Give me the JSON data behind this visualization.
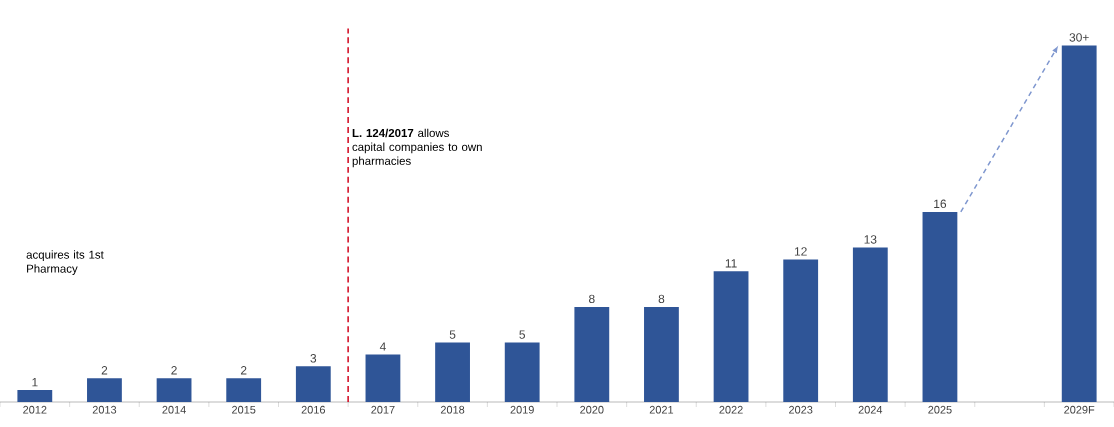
{
  "chart_data": {
    "type": "bar",
    "categories": [
      "2012",
      "2013",
      "2014",
      "2015",
      "2016",
      "2017",
      "2018",
      "2019",
      "2020",
      "2021",
      "2022",
      "2023",
      "2024",
      "2025",
      null,
      "2029F"
    ],
    "values": [
      1,
      2,
      2,
      2,
      3,
      4,
      5,
      5,
      8,
      8,
      11,
      12,
      13,
      16,
      null,
      30
    ],
    "value_labels": [
      "1",
      "2",
      "2",
      "2",
      "3",
      "4",
      "5",
      "5",
      "8",
      "8",
      "11",
      "12",
      "13",
      "16",
      null,
      "30+"
    ],
    "color": "#2f5597",
    "ref_lines": [
      {
        "axis": "x",
        "value": "2017",
        "label": "**L. 124/2017** allows capital companies to own pharmacies",
        "color": "#d0021b",
        "line_style": "dashed"
      }
    ],
    "annotations": [
      "acquires its 1st Pharmacy"
    ]
  }
}
